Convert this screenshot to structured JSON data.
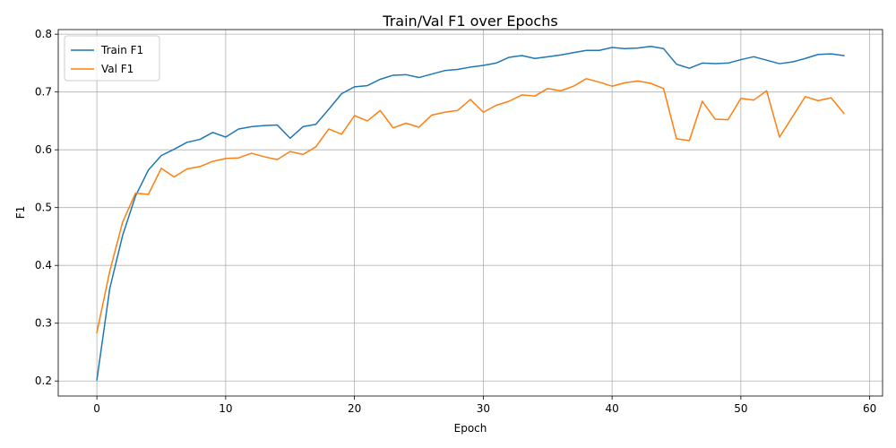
{
  "chart_data": {
    "type": "line",
    "title": "Train/Val F1 over Epochs",
    "xlabel": "Epoch",
    "ylabel": "F1",
    "xlim": [
      -3,
      61
    ],
    "ylim": [
      0.174,
      0.808
    ],
    "xticks": [
      0,
      10,
      20,
      30,
      40,
      50,
      60
    ],
    "yticks": [
      0.2,
      0.3,
      0.4,
      0.5,
      0.6,
      0.7,
      0.8
    ],
    "grid": true,
    "legend_position": "upper-left",
    "x": [
      0,
      1,
      2,
      3,
      4,
      5,
      6,
      7,
      8,
      9,
      10,
      11,
      12,
      13,
      14,
      15,
      16,
      17,
      18,
      19,
      20,
      21,
      22,
      23,
      24,
      25,
      26,
      27,
      28,
      29,
      30,
      31,
      32,
      33,
      34,
      35,
      36,
      37,
      38,
      39,
      40,
      41,
      42,
      43,
      44,
      45,
      46,
      47,
      48,
      49,
      50,
      51,
      52,
      53,
      54,
      55,
      56,
      57,
      58
    ],
    "series": [
      {
        "name": "Train F1",
        "color": "#1f77b4",
        "values": [
          0.202,
          0.36,
          0.452,
          0.52,
          0.565,
          0.59,
          0.601,
          0.613,
          0.618,
          0.63,
          0.622,
          0.636,
          0.64,
          0.642,
          0.643,
          0.62,
          0.64,
          0.644,
          0.67,
          0.697,
          0.709,
          0.711,
          0.722,
          0.729,
          0.73,
          0.725,
          0.731,
          0.737,
          0.739,
          0.743,
          0.746,
          0.75,
          0.76,
          0.763,
          0.758,
          0.761,
          0.764,
          0.768,
          0.772,
          0.772,
          0.777,
          0.775,
          0.776,
          0.779,
          0.775,
          0.748,
          0.741,
          0.75,
          0.749,
          0.75,
          0.756,
          0.761,
          0.755,
          0.749,
          0.752,
          0.758,
          0.765,
          0.766,
          0.763
        ]
      },
      {
        "name": "Val F1",
        "color": "#ff7f0e",
        "values": [
          0.284,
          0.39,
          0.475,
          0.525,
          0.523,
          0.568,
          0.553,
          0.567,
          0.571,
          0.58,
          0.585,
          0.586,
          0.594,
          0.588,
          0.583,
          0.597,
          0.592,
          0.605,
          0.636,
          0.627,
          0.659,
          0.65,
          0.668,
          0.638,
          0.646,
          0.639,
          0.66,
          0.665,
          0.668,
          0.687,
          0.665,
          0.677,
          0.684,
          0.695,
          0.693,
          0.706,
          0.702,
          0.71,
          0.723,
          0.717,
          0.71,
          0.716,
          0.719,
          0.715,
          0.706,
          0.619,
          0.616,
          0.684,
          0.653,
          0.652,
          0.689,
          0.686,
          0.702,
          0.622,
          0.657,
          0.692,
          0.685,
          0.69,
          0.663
        ]
      }
    ]
  }
}
